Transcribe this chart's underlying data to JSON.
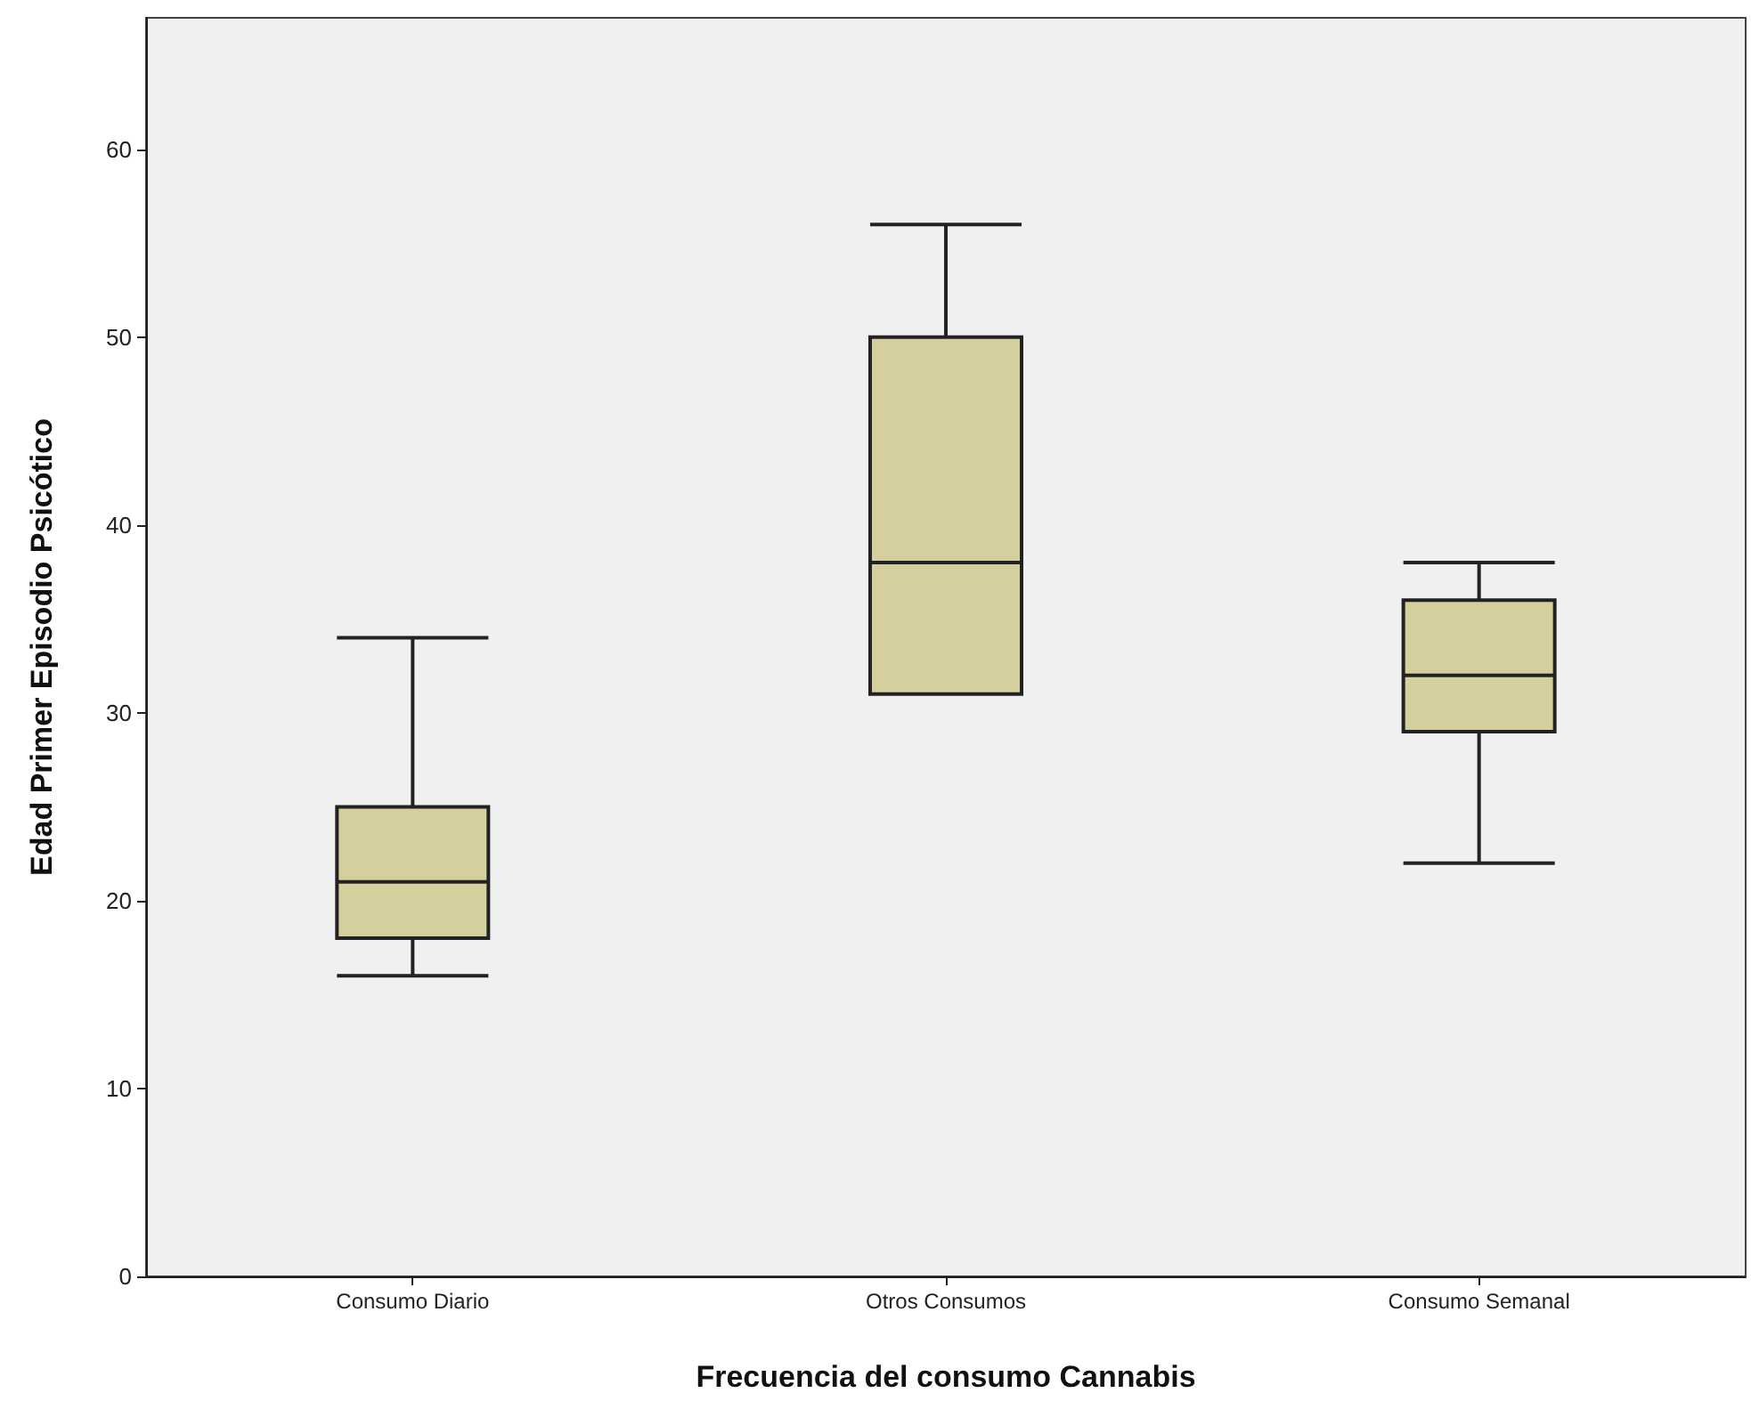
{
  "chart_data": {
    "type": "box",
    "xlabel": "Frecuencia del consumo Cannabis",
    "ylabel": "Edad Primer Episodio Psicótico",
    "categories": [
      "Consumo Diario",
      "Otros Consumos",
      "Consumo Semanal"
    ],
    "boxes": [
      {
        "low": 16,
        "q1": 18,
        "median": 21,
        "q3": 25,
        "high": 34
      },
      {
        "low": 31,
        "q1": 31,
        "median": 38,
        "q3": 50,
        "high": 56
      },
      {
        "low": 22,
        "q1": 29,
        "median": 32,
        "q3": 36,
        "high": 38
      }
    ],
    "color": "#d4cf9c",
    "ylim": [
      0,
      67
    ],
    "yticks": [
      0,
      10,
      20,
      30,
      40,
      50,
      60
    ],
    "grid": false
  }
}
